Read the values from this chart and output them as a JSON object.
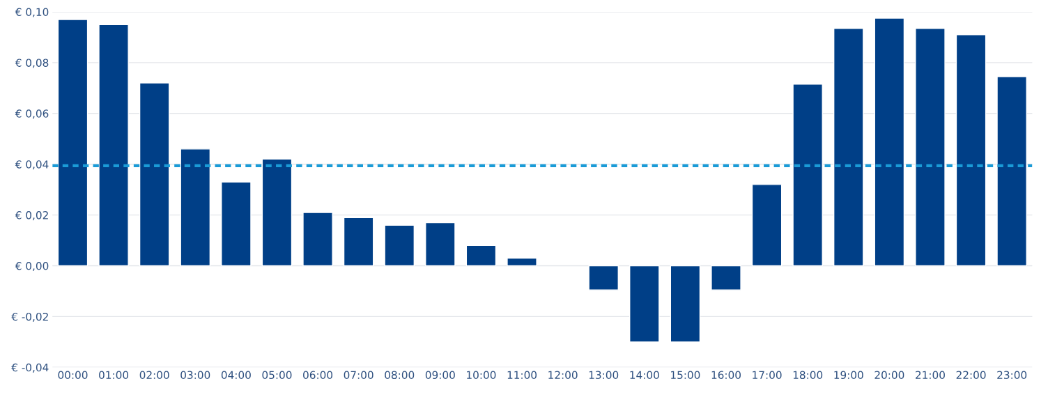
{
  "chart_data": {
    "type": "bar",
    "categories": [
      "00:00",
      "01:00",
      "02:00",
      "03:00",
      "04:00",
      "05:00",
      "06:00",
      "07:00",
      "08:00",
      "09:00",
      "10:00",
      "11:00",
      "12:00",
      "13:00",
      "14:00",
      "15:00",
      "16:00",
      "17:00",
      "18:00",
      "19:00",
      "20:00",
      "21:00",
      "22:00",
      "23:00"
    ],
    "values": [
      0.097,
      0.095,
      0.072,
      0.046,
      0.033,
      0.042,
      0.021,
      0.019,
      0.016,
      0.017,
      0.008,
      0.003,
      null,
      -0.0095,
      -0.03,
      -0.03,
      -0.0095,
      0.032,
      0.0715,
      0.0935,
      0.0975,
      0.0935,
      0.091,
      0.0745
    ],
    "color": "#003f87",
    "ylim": [
      -0.04,
      0.1
    ],
    "yticks": [
      {
        "value": -0.04,
        "label": "€ -0,04"
      },
      {
        "value": -0.02,
        "label": "€ -0,02"
      },
      {
        "value": 0,
        "label": "€ 0,00"
      },
      {
        "value": 0.02,
        "label": "€ 0,02"
      },
      {
        "value": 0.04,
        "label": "€ 0,04"
      },
      {
        "value": 0.06,
        "label": "€ 0,06"
      },
      {
        "value": 0.08,
        "label": "€ 0,08"
      },
      {
        "value": 0.1,
        "label": "€ 0,10"
      }
    ],
    "ref_lines": [
      {
        "axis": "y",
        "value": 0.0394,
        "color": "#1a9bd7",
        "line_style": "dashed"
      }
    ],
    "grid": "y",
    "legend": false
  }
}
